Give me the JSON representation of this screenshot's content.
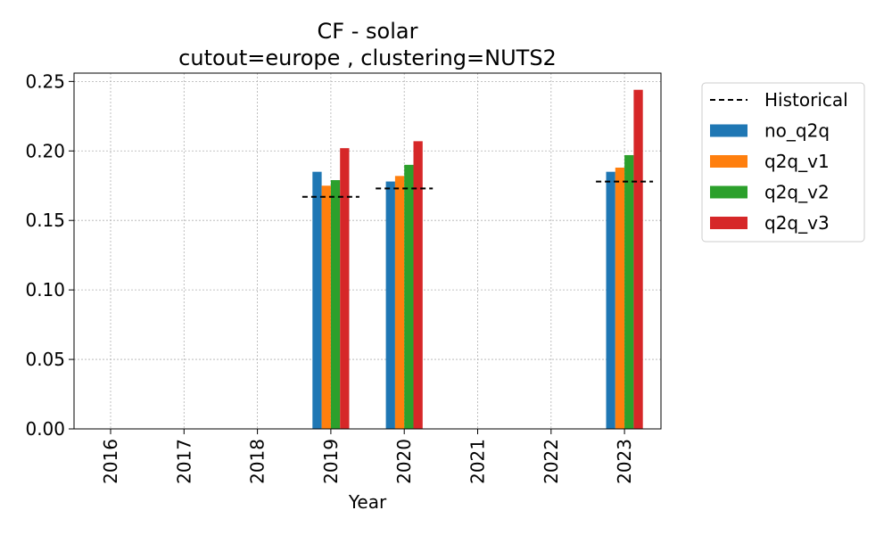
{
  "chart_data": {
    "type": "bar",
    "title": "CF - solar",
    "subtitle": "cutout=europe , clustering=NUTS2",
    "xlabel": "Year",
    "ylabel": "",
    "categories": [
      "2016",
      "2017",
      "2018",
      "2019",
      "2020",
      "2021",
      "2022",
      "2023"
    ],
    "ylim": [
      0,
      0.256
    ],
    "yticks": [
      "0.00",
      "0.05",
      "0.10",
      "0.15",
      "0.20",
      "0.25"
    ],
    "grid": true,
    "legend_position": "outside-top-right",
    "historical": {
      "name": "Historical",
      "color": "#000000",
      "style": "dashed",
      "values": [
        null,
        null,
        null,
        0.167,
        0.173,
        null,
        null,
        0.178
      ]
    },
    "series": [
      {
        "name": "no_q2q",
        "color": "#1f77b4",
        "values": [
          null,
          null,
          null,
          0.185,
          0.178,
          null,
          null,
          0.185
        ]
      },
      {
        "name": "q2q_v1",
        "color": "#ff7f0e",
        "values": [
          null,
          null,
          null,
          0.175,
          0.182,
          null,
          null,
          0.188
        ]
      },
      {
        "name": "q2q_v2",
        "color": "#2ca02c",
        "values": [
          null,
          null,
          null,
          0.179,
          0.19,
          null,
          null,
          0.197
        ]
      },
      {
        "name": "q2q_v3",
        "color": "#d62728",
        "values": [
          null,
          null,
          null,
          0.202,
          0.207,
          null,
          null,
          0.244
        ]
      }
    ]
  }
}
